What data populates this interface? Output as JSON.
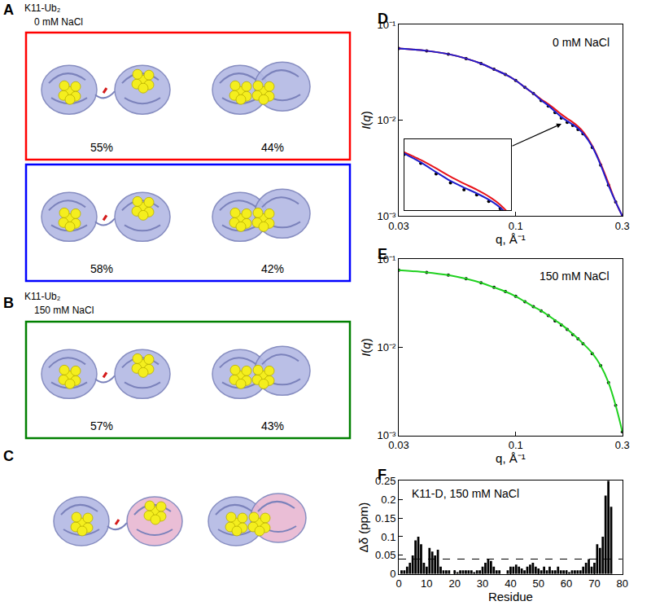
{
  "panels": {
    "A": {
      "label": "A",
      "construct": "K11-Ub₂",
      "condition": "0 mM NaCl",
      "ensembles": [
        {
          "color": "red",
          "populations": [
            "55%",
            "44%"
          ]
        },
        {
          "color": "blue",
          "populations": [
            "58%",
            "42%"
          ]
        }
      ]
    },
    "B": {
      "label": "B",
      "construct": "K11-Ub₂",
      "condition": "150 mM NaCl",
      "ensembles": [
        {
          "color": "green",
          "populations": [
            "57%",
            "43%"
          ]
        }
      ]
    },
    "C": {
      "label": "C"
    }
  },
  "chart_data": [
    {
      "type": "line",
      "label": "D",
      "annotation": "0 mM NaCl",
      "log": true,
      "grid": false,
      "x_label": "q, Å⁻¹",
      "y_label": "I(q)",
      "x": [
        0.03,
        0.04,
        0.05,
        0.06,
        0.07,
        0.08,
        0.09,
        0.1,
        0.11,
        0.12,
        0.13,
        0.14,
        0.15,
        0.16,
        0.17,
        0.18,
        0.19,
        0.2,
        0.22,
        0.24,
        0.26,
        0.28,
        0.3
      ],
      "series": [
        {
          "type": "scatter",
          "marker": "circle",
          "color": "#000000",
          "values": [
            0.056,
            0.053,
            0.049,
            0.044,
            0.039,
            0.034,
            0.03,
            0.026,
            0.022,
            0.019,
            0.016,
            0.014,
            0.012,
            0.0105,
            0.0095,
            0.0088,
            0.008,
            0.0072,
            0.0052,
            0.0034,
            0.0021,
            0.0014,
            0.001
          ]
        },
        {
          "type": "line",
          "line_style": "solid",
          "color": "#e8141b",
          "values": [
            0.056,
            0.053,
            0.049,
            0.044,
            0.039,
            0.034,
            0.03,
            0.026,
            0.022,
            0.019,
            0.0165,
            0.0147,
            0.013,
            0.0115,
            0.0104,
            0.0095,
            0.0086,
            0.0076,
            0.0054,
            0.0035,
            0.0022,
            0.0014,
            0.001
          ]
        },
        {
          "type": "line",
          "line_style": "solid",
          "color": "#1d1dcc",
          "values": [
            0.056,
            0.053,
            0.049,
            0.044,
            0.039,
            0.034,
            0.03,
            0.026,
            0.022,
            0.019,
            0.0162,
            0.0142,
            0.0123,
            0.0108,
            0.0098,
            0.009,
            0.0082,
            0.0073,
            0.0053,
            0.0034,
            0.0021,
            0.0014,
            0.001
          ]
        }
      ],
      "xlim": [
        0.03,
        0.3
      ],
      "xticks": [
        0.03,
        0.1,
        0.3
      ],
      "ylim": [
        0.001,
        0.1
      ],
      "yticks": [
        {
          "value": 0.001,
          "label": "10⁻³"
        },
        {
          "value": 0.01,
          "label": "10⁻²"
        },
        {
          "value": 0.1,
          "label": "10⁻¹"
        }
      ],
      "inset": {
        "xlim": [
          0.13,
          0.21
        ],
        "ylim": [
          0.007,
          0.02
        ],
        "tick_labels": false
      }
    },
    {
      "type": "line",
      "label": "E",
      "annotation": "150 mM NaCl",
      "log": true,
      "grid": false,
      "x_label": "q, Å⁻¹",
      "y_label": "I(q)",
      "x": [
        0.03,
        0.04,
        0.05,
        0.06,
        0.07,
        0.08,
        0.09,
        0.1,
        0.11,
        0.12,
        0.13,
        0.14,
        0.15,
        0.16,
        0.17,
        0.18,
        0.19,
        0.2,
        0.22,
        0.24,
        0.26,
        0.28,
        0.3
      ],
      "series": [
        {
          "type": "scatter",
          "marker": "circle",
          "color": "#000000",
          "values": [
            0.075,
            0.071,
            0.066,
            0.06,
            0.054,
            0.048,
            0.043,
            0.038,
            0.033,
            0.029,
            0.026,
            0.023,
            0.02,
            0.018,
            0.016,
            0.014,
            0.0125,
            0.011,
            0.0085,
            0.0062,
            0.004,
            0.0022,
            0.0011
          ]
        },
        {
          "type": "line",
          "line_style": "solid",
          "color": "#1fd11f",
          "values": [
            0.075,
            0.071,
            0.066,
            0.06,
            0.054,
            0.048,
            0.043,
            0.038,
            0.033,
            0.029,
            0.026,
            0.023,
            0.0203,
            0.0182,
            0.0161,
            0.0142,
            0.0126,
            0.0111,
            0.0086,
            0.0062,
            0.004,
            0.0022,
            0.0011
          ]
        }
      ],
      "xlim": [
        0.03,
        0.3
      ],
      "xticks": [
        0.03,
        0.1,
        0.3
      ],
      "ylim": [
        0.001,
        0.1
      ],
      "yticks": [
        {
          "value": 0.001,
          "label": "10⁻³"
        },
        {
          "value": 0.01,
          "label": "10⁻²"
        },
        {
          "value": 0.1,
          "label": "10⁻¹"
        }
      ]
    },
    {
      "type": "bar",
      "label": "F",
      "annotation": "K11-D, 150 mM NaCl",
      "grid": false,
      "color": "#000000",
      "x_label": "Residue",
      "y_label": "Δδ (ppm)",
      "x": [
        1,
        2,
        3,
        4,
        5,
        6,
        7,
        8,
        9,
        10,
        11,
        12,
        13,
        14,
        15,
        16,
        17,
        18,
        19,
        20,
        21,
        22,
        23,
        24,
        25,
        26,
        27,
        28,
        29,
        30,
        31,
        32,
        33,
        34,
        35,
        36,
        37,
        38,
        39,
        40,
        41,
        42,
        43,
        44,
        45,
        46,
        47,
        48,
        49,
        50,
        51,
        52,
        53,
        54,
        55,
        56,
        57,
        58,
        59,
        60,
        61,
        62,
        63,
        64,
        65,
        66,
        67,
        68,
        69,
        70,
        71,
        72,
        73,
        74,
        75,
        76
      ],
      "values": [
        0.01,
        0.01,
        0.02,
        0.03,
        0.05,
        0.09,
        0.1,
        0.08,
        0.03,
        0.02,
        0.07,
        0.06,
        0.05,
        0.065,
        0.02,
        0.01,
        0.01,
        0.01,
        null,
        0.01,
        0.005,
        0.01,
        0.01,
        0.01,
        0.01,
        0.01,
        0.005,
        0.01,
        0.01,
        0.02,
        0.03,
        0.04,
        0.035,
        0.02,
        0.01,
        0.01,
        null,
        null,
        0.01,
        0.02,
        0.02,
        0.025,
        0.02,
        0.015,
        0.01,
        0.02,
        0.025,
        0.03,
        0.02,
        0.015,
        0.01,
        0.02,
        0.01,
        0.02,
        0.01,
        0.01,
        0.02,
        0.01,
        0.01,
        0.01,
        0.005,
        0.01,
        0.01,
        0.01,
        0.01,
        0.02,
        0.03,
        0.04,
        0.02,
        0.03,
        0.08,
        0.07,
        0.1,
        0.21,
        0.25,
        0.18
      ],
      "threshold": {
        "value": 0.04,
        "line_style": "dashed"
      },
      "xlim": [
        0,
        80
      ],
      "xticks": [
        0,
        10,
        20,
        30,
        40,
        50,
        60,
        70,
        80
      ],
      "ylim": [
        0,
        0.25
      ],
      "yticks": [
        0,
        0.05,
        0.1,
        0.15,
        0.2,
        0.25
      ]
    }
  ]
}
